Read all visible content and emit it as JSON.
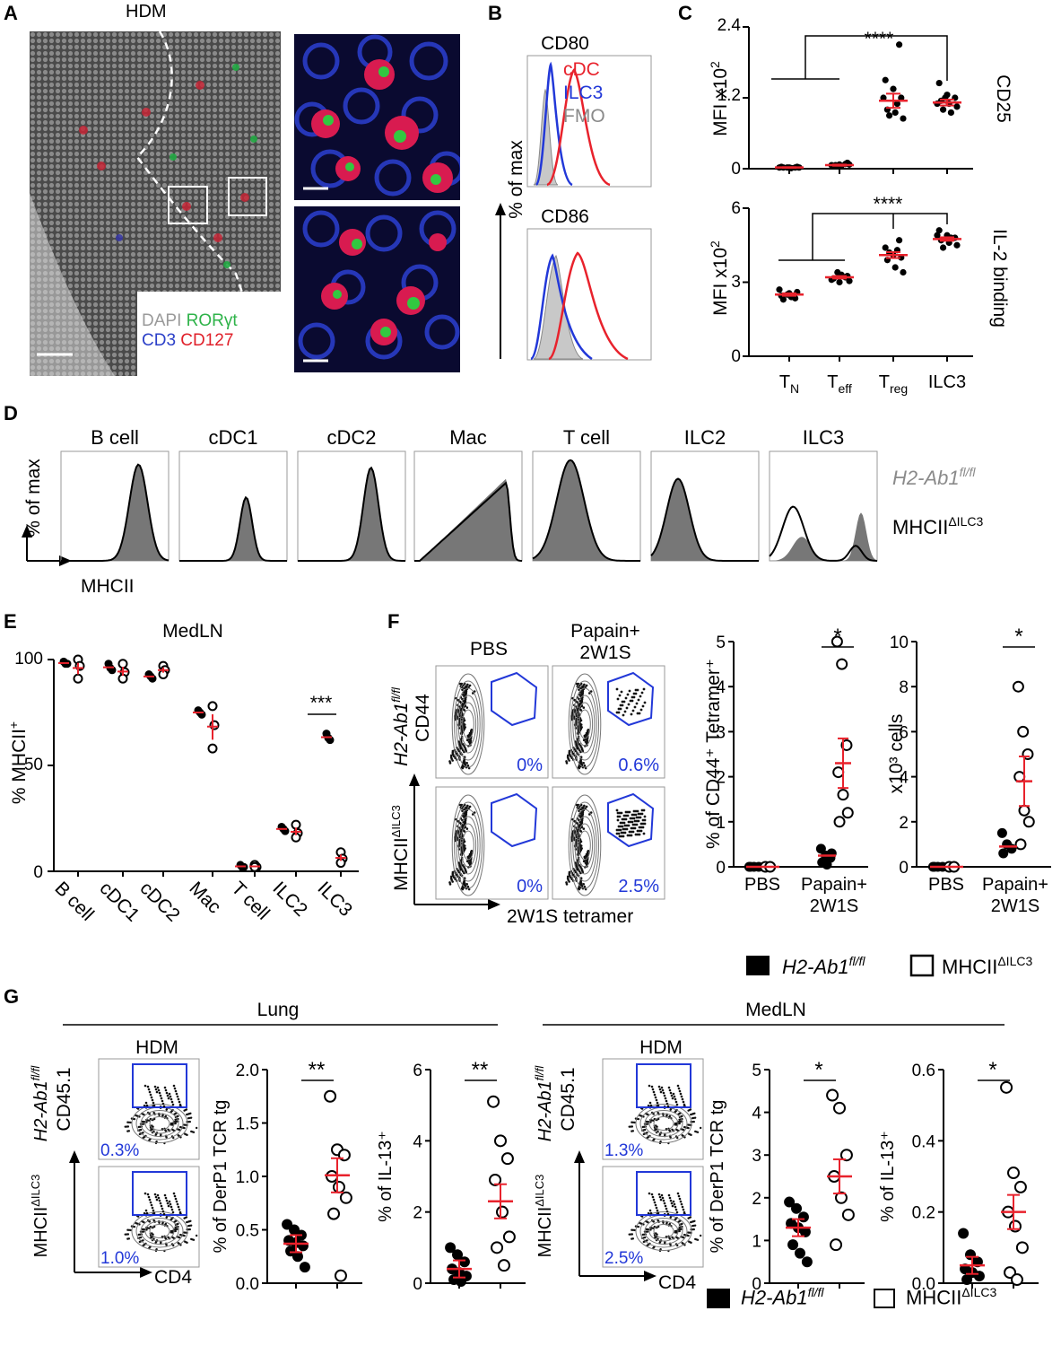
{
  "panel_letters": [
    "A",
    "B",
    "C",
    "D",
    "E",
    "F",
    "G"
  ],
  "panelA": {
    "title": "HDM",
    "legend_line1": [
      "DAPI",
      "RORγt"
    ],
    "legend_line2": [
      "CD3",
      "CD127"
    ],
    "colors": {
      "DAPI": "#9a9a9a",
      "RORgt": "#2fb34a",
      "CD3": "#2c40c8",
      "CD127": "#e0202a"
    }
  },
  "panelB": {
    "ylabel": "% of max",
    "top_title": "CD80",
    "bottom_title": "CD86",
    "legend": [
      {
        "name": "cDC",
        "color": "#e8222c"
      },
      {
        "name": "ILC3",
        "color": "#2238d8"
      },
      {
        "name": "FMO",
        "color": "#8a8a8a"
      }
    ]
  },
  "panelC": {
    "top": {
      "ylabel": "MFI x10",
      "ylabel_sup": "2",
      "side_label": "CD25",
      "yticks": [
        "0",
        "1.2",
        "2.4"
      ],
      "sig": "****"
    },
    "bottom": {
      "ylabel": "MFI x10",
      "ylabel_sup": "2",
      "side_label": "IL-2 binding",
      "yticks": [
        "0",
        "3",
        "6"
      ],
      "sig": "****"
    },
    "xcats": [
      {
        "main": "T",
        "sub": "N"
      },
      {
        "main": "T",
        "sub": "eff"
      },
      {
        "main": "T",
        "sub": "reg"
      },
      {
        "main": "ILC3",
        "sub": ""
      }
    ]
  },
  "panelD": {
    "titles": [
      "B cell",
      "cDC1",
      "cDC2",
      "Mac",
      "T cell",
      "ILC2",
      "ILC3"
    ],
    "ylabel": "% of max",
    "xlabel": "MHCII",
    "legend_fl_main": "H2-Ab1",
    "legend_fl_sup": "fl/fl",
    "legend_ko_main": "MHCII",
    "legend_ko_sup": "ΔILC3"
  },
  "panelE": {
    "title": "MedLN",
    "ylabel": "% MHCII",
    "ylabel_sup": "+",
    "yticks": [
      "0",
      "50",
      "100"
    ],
    "categories": [
      "B cell",
      "cDC1",
      "cDC2",
      "Mac",
      "T cell",
      "ILC2",
      "ILC3"
    ],
    "sig": "***"
  },
  "panelF": {
    "col_titles": [
      "PBS",
      "Papain+",
      "2W1S"
    ],
    "row_fl_main": "H2-Ab1",
    "row_fl_sup": "fl/fl",
    "row_ko_main": "MHCII",
    "row_ko_sup": "ΔILC3",
    "yaxis": "CD44",
    "xaxis": "2W1S tetramer",
    "gate_pcts": [
      "0%",
      "0.6%",
      "0%",
      "2.5%"
    ],
    "plot1": {
      "ylabel": "% of CD44⁺ Tetramer⁺",
      "yticks": [
        "0",
        "1",
        "2",
        "3",
        "4",
        "5"
      ],
      "sig": "*"
    },
    "plot2": {
      "ylabel": "x10³ cells",
      "yticks": [
        "0",
        "2",
        "4",
        "6",
        "8",
        "10"
      ],
      "sig": "*"
    },
    "xcats": [
      "PBS",
      "Papain+",
      "2W1S"
    ],
    "legend_fl_main": "H2-Ab1",
    "legend_fl_sup": "fl/fl",
    "legend_ko_main": "MHCII",
    "legend_ko_sup": "ΔILC3"
  },
  "panelG": {
    "lung_title": "Lung",
    "medln_title": "MedLN",
    "hdm": "HDM",
    "row_fl_main": "H2-Ab1",
    "row_fl_sup": "fl/fl",
    "row_ko_main": "MHCII",
    "row_ko_sup": "ΔILC3",
    "yaxis": "CD45.1",
    "xaxis": "CD4",
    "lung_pcts": [
      "0.3%",
      "1.0%"
    ],
    "medln_pcts": [
      "1.3%",
      "2.5%"
    ],
    "lung_derp1": {
      "ylabel": "% of DerP1 TCR tg",
      "yticks": [
        "0.0",
        "0.5",
        "1.0",
        "1.5",
        "2.0"
      ],
      "sig": "**"
    },
    "lung_il13": {
      "ylabel": "% of IL-13⁺",
      "yticks": [
        "0",
        "2",
        "4",
        "6"
      ],
      "sig": "**"
    },
    "medln_derp1": {
      "ylabel": "% of DerP1 TCR tg",
      "yticks": [
        "0",
        "1",
        "2",
        "3",
        "4",
        "5"
      ],
      "sig": "*"
    },
    "medln_il13": {
      "ylabel": "% of IL-13⁺",
      "yticks": [
        "0.0",
        "0.2",
        "0.4",
        "0.6"
      ],
      "sig": "*"
    },
    "legend_fl_main": "H2-Ab1",
    "legend_fl_sup": "fl/fl",
    "legend_ko_main": "MHCII",
    "legend_ko_sup": "ΔILC3"
  },
  "chart_data": [
    {
      "type": "scatter",
      "title": "",
      "ylabel": "MFI x10²",
      "panel": "C-top CD25",
      "ylim": [
        0,
        2.4
      ],
      "categories": [
        "TN",
        "Teff",
        "Treg",
        "ILC3"
      ],
      "points": [
        [
          0.02,
          0.02,
          0.02,
          0.03,
          0.02,
          0.03,
          0.02,
          0.01,
          0.02
        ],
        [
          0.05,
          0.08,
          0.06,
          0.07,
          0.1,
          0.04,
          0.05,
          0.07,
          0.06
        ],
        [
          2.1,
          1.5,
          1.35,
          1.2,
          1.0,
          0.95,
          0.85,
          0.9,
          1.1,
          1.2
        ],
        [
          1.45,
          1.25,
          1.2,
          1.15,
          1.1,
          1.05,
          1.0,
          0.95,
          1.1,
          1.2
        ]
      ],
      "means": [
        0.02,
        0.06,
        1.15,
        1.12
      ],
      "sem": [
        0.005,
        0.01,
        0.12,
        0.05
      ]
    },
    {
      "type": "scatter",
      "panel": "C-bottom IL-2 binding",
      "ylabel": "MFI x10²",
      "ylim": [
        0,
        6
      ],
      "categories": [
        "TN",
        "Teff",
        "Treg",
        "ILC3"
      ],
      "points": [
        [
          2.7,
          2.5,
          2.35,
          2.45,
          2.55,
          2.6,
          2.3,
          2.4
        ],
        [
          3.4,
          3.2,
          3.1,
          3.0,
          3.25,
          3.15,
          3.3,
          3.05
        ],
        [
          4.7,
          4.4,
          4.1,
          4.0,
          3.9,
          3.6,
          3.4,
          4.2,
          4.3
        ],
        [
          5.1,
          4.9,
          4.8,
          4.7,
          4.6,
          4.5,
          4.4,
          4.8,
          4.9
        ]
      ],
      "means": [
        2.5,
        3.2,
        4.1,
        4.75
      ],
      "sem": [
        0.05,
        0.05,
        0.12,
        0.07
      ]
    },
    {
      "type": "scatter",
      "panel": "E",
      "ylabel": "% MHCII⁺",
      "ylim": [
        0,
        100
      ],
      "categories": [
        "B cell",
        "cDC1",
        "cDC2",
        "Mac",
        "T cell",
        "ILC2",
        "ILC3"
      ],
      "filled_points": [
        [
          99,
          98,
          98
        ],
        [
          98,
          96,
          95
        ],
        [
          93,
          92,
          91
        ],
        [
          76,
          75,
          74
        ],
        [
          3,
          2,
          2
        ],
        [
          21,
          20,
          19
        ],
        [
          65,
          63,
          62
        ]
      ],
      "open_points": [
        [
          100,
          97,
          91
        ],
        [
          98,
          94,
          91
        ],
        [
          97,
          95,
          93
        ],
        [
          78,
          69,
          58
        ],
        [
          3,
          2,
          2
        ],
        [
          22,
          18,
          16
        ],
        [
          9,
          6,
          4
        ]
      ]
    },
    {
      "type": "scatter",
      "panel": "F-left",
      "ylabel": "% of CD44⁺ Tetramer⁺",
      "ylim": [
        0,
        5
      ],
      "categories": [
        "PBS",
        "Papain+ 2W1S"
      ],
      "filled_points": [
        [
          0,
          0,
          0,
          0
        ],
        [
          0.4,
          0.25,
          0.2,
          0.1,
          0.05,
          0.3
        ]
      ],
      "open_points": [
        [
          0,
          0
        ],
        [
          5,
          4.5,
          2.7,
          2.1,
          1.6,
          1.2,
          1.0
        ]
      ],
      "means_filled": [
        0,
        0.25
      ],
      "means_open": [
        0,
        2.3
      ]
    },
    {
      "type": "scatter",
      "panel": "F-right",
      "ylabel": "x10³ cells",
      "ylim": [
        0,
        10
      ],
      "categories": [
        "PBS",
        "Papain+ 2W1S"
      ],
      "filled_points": [
        [
          0,
          0,
          0,
          0
        ],
        [
          1.5,
          1.0,
          0.8,
          0.6
        ]
      ],
      "open_points": [
        [
          0,
          0
        ],
        [
          8,
          6,
          5,
          4,
          2.5,
          2,
          1
        ]
      ],
      "means_filled": [
        0,
        0.9
      ],
      "means_open": [
        0,
        3.8
      ]
    },
    {
      "type": "scatter",
      "panel": "G-lung DerP1",
      "ylabel": "% of DerP1 TCR tg",
      "ylim": [
        0,
        2.0
      ],
      "filled_points": [
        0.55,
        0.5,
        0.45,
        0.4,
        0.38,
        0.35,
        0.3,
        0.25,
        0.15
      ],
      "open_points": [
        1.75,
        1.25,
        1.2,
        1.0,
        0.9,
        0.8,
        0.65,
        0.07
      ],
      "means": [
        0.37,
        1.01
      ]
    },
    {
      "type": "scatter",
      "panel": "G-lung IL-13",
      "ylabel": "% of IL-13⁺",
      "ylim": [
        0,
        6
      ],
      "filled_points": [
        1.0,
        0.8,
        0.6,
        0.4,
        0.3,
        0.2,
        0.1,
        0.05
      ],
      "open_points": [
        5.1,
        4.0,
        3.5,
        2.9,
        2.0,
        1.3,
        1.0,
        0.5
      ],
      "means": [
        0.4,
        2.3
      ]
    },
    {
      "type": "scatter",
      "panel": "G-medLN DerP1",
      "ylabel": "% of DerP1 TCR tg",
      "ylim": [
        0,
        5
      ],
      "filled_points": [
        1.9,
        1.75,
        1.55,
        1.4,
        1.3,
        1.2,
        0.9,
        0.7,
        0.5
      ],
      "open_points": [
        4.4,
        4.1,
        3.0,
        2.5,
        2.0,
        1.6,
        0.9
      ],
      "means": [
        1.3,
        2.5
      ]
    },
    {
      "type": "scatter",
      "panel": "G-medLN IL-13",
      "ylabel": "% of IL-13⁺",
      "ylim": [
        0,
        0.6
      ],
      "filled_points": [
        0.14,
        0.08,
        0.06,
        0.04,
        0.03,
        0.02,
        0.01
      ],
      "open_points": [
        0.55,
        0.31,
        0.27,
        0.2,
        0.16,
        0.1,
        0.03,
        0.01
      ],
      "means": [
        0.05,
        0.2
      ]
    }
  ]
}
